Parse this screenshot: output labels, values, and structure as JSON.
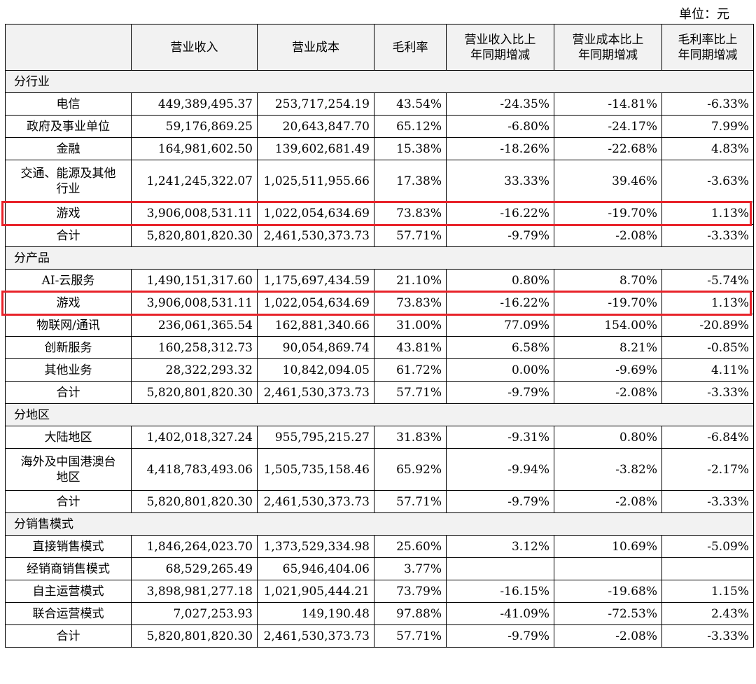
{
  "unit_label": "单位：元",
  "header": [
    "",
    "营业收入",
    "营业成本",
    "毛利率",
    "营业收入比上年同期增减",
    "营业成本比上年同期增减",
    "毛利率比上年同期增减"
  ],
  "header_lines": [
    [
      ""
    ],
    [
      "营业收入"
    ],
    [
      "营业成本"
    ],
    [
      "毛利率"
    ],
    [
      "营业收入比上",
      "年同期增减"
    ],
    [
      "营业成本比上",
      "年同期增减"
    ],
    [
      "毛利率比上",
      "年同期增减"
    ]
  ],
  "sections": [
    {
      "title": "分行业",
      "rows": [
        {
          "label": [
            "电信"
          ],
          "cells": [
            "449,389,495.37",
            "253,717,254.19",
            "43.54%",
            "-24.35%",
            "-14.81%",
            "-6.33%"
          ]
        },
        {
          "label": [
            "政府及事业单位"
          ],
          "cells": [
            "59,176,869.25",
            "20,643,847.70",
            "65.12%",
            "-6.80%",
            "-24.17%",
            "7.99%"
          ]
        },
        {
          "label": [
            "金融"
          ],
          "cells": [
            "164,981,602.50",
            "139,602,681.49",
            "15.38%",
            "-18.26%",
            "-22.68%",
            "4.83%"
          ]
        },
        {
          "label": [
            "交通、能源及其他",
            "行业"
          ],
          "cells": [
            "1,241,245,322.07",
            "1,025,511,955.66",
            "17.38%",
            "33.33%",
            "39.46%",
            "-3.63%"
          ]
        },
        {
          "label": [
            "游戏"
          ],
          "highlight": true,
          "cells": [
            "3,906,008,531.11",
            "1,022,054,634.69",
            "73.83%",
            "-16.22%",
            "-19.70%",
            "1.13%"
          ]
        },
        {
          "label": [
            "合计"
          ],
          "cells": [
            "5,820,801,820.30",
            "2,461,530,373.73",
            "57.71%",
            "-9.79%",
            "-2.08%",
            "-3.33%"
          ]
        }
      ]
    },
    {
      "title": "分产品",
      "rows": [
        {
          "label": [
            "AI-云服务"
          ],
          "cells": [
            "1,490,151,317.60",
            "1,175,697,434.59",
            "21.10%",
            "0.80%",
            "8.70%",
            "-5.74%"
          ]
        },
        {
          "label": [
            "游戏"
          ],
          "highlight": true,
          "cells": [
            "3,906,008,531.11",
            "1,022,054,634.69",
            "73.83%",
            "-16.22%",
            "-19.70%",
            "1.13%"
          ]
        },
        {
          "label": [
            "物联网/通讯"
          ],
          "cells": [
            "236,061,365.54",
            "162,881,340.66",
            "31.00%",
            "77.09%",
            "154.00%",
            "-20.89%"
          ]
        },
        {
          "label": [
            "创新服务"
          ],
          "cells": [
            "160,258,312.73",
            "90,054,869.74",
            "43.81%",
            "6.58%",
            "8.21%",
            "-0.85%"
          ]
        },
        {
          "label": [
            "其他业务"
          ],
          "cells": [
            "28,322,293.32",
            "10,842,094.05",
            "61.72%",
            "0.00%",
            "-9.69%",
            "4.11%"
          ]
        },
        {
          "label": [
            "合计"
          ],
          "cells": [
            "5,820,801,820.30",
            "2,461,530,373.73",
            "57.71%",
            "-9.79%",
            "-2.08%",
            "-3.33%"
          ]
        }
      ]
    },
    {
      "title": "分地区",
      "rows": [
        {
          "label": [
            "大陆地区"
          ],
          "cells": [
            "1,402,018,327.24",
            "955,795,215.27",
            "31.83%",
            "-9.31%",
            "0.80%",
            "-6.84%"
          ]
        },
        {
          "label": [
            "海外及中国港澳台",
            "地区"
          ],
          "cells": [
            "4,418,783,493.06",
            "1,505,735,158.46",
            "65.92%",
            "-9.94%",
            "-3.82%",
            "-2.17%"
          ]
        },
        {
          "label": [
            "合计"
          ],
          "cells": [
            "5,820,801,820.30",
            "2,461,530,373.73",
            "57.71%",
            "-9.79%",
            "-2.08%",
            "-3.33%"
          ]
        }
      ]
    },
    {
      "title": "分销售模式",
      "rows": [
        {
          "label": [
            "直接销售模式"
          ],
          "cells": [
            "1,846,264,023.70",
            "1,373,529,334.98",
            "25.60%",
            "3.12%",
            "10.69%",
            "-5.09%"
          ]
        },
        {
          "label": [
            "经销商销售模式"
          ],
          "cells": [
            "68,529,265.49",
            "65,946,404.06",
            "3.77%",
            "",
            "",
            ""
          ]
        },
        {
          "label": [
            "自主运营模式"
          ],
          "cells": [
            "3,898,981,277.18",
            "1,021,905,444.21",
            "73.79%",
            "-16.15%",
            "-19.68%",
            "1.15%"
          ]
        },
        {
          "label": [
            "联合运营模式"
          ],
          "cells": [
            "7,027,253.93",
            "149,190.48",
            "97.88%",
            "-41.09%",
            "-72.53%",
            "2.43%"
          ]
        },
        {
          "label": [
            "合计"
          ],
          "cells": [
            "5,820,801,820.30",
            "2,461,530,373.73",
            "57.71%",
            "-9.79%",
            "-2.08%",
            "-3.33%"
          ]
        }
      ]
    }
  ]
}
